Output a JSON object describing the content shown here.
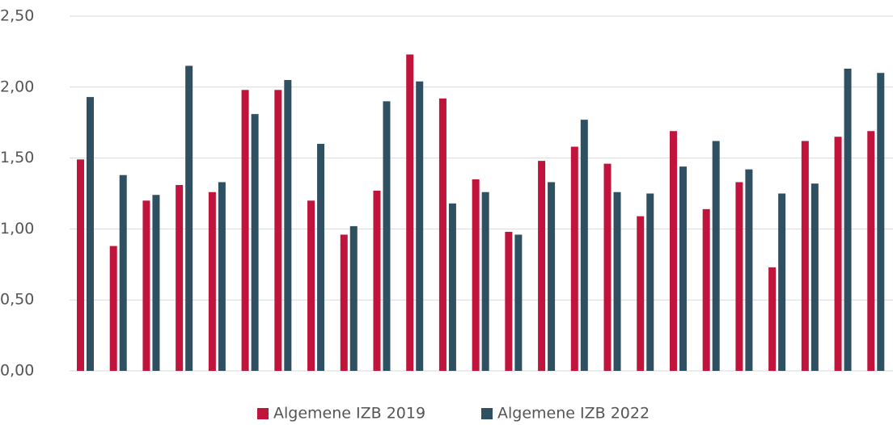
{
  "chart_data": {
    "type": "bar",
    "categories": [
      null,
      null,
      null,
      null,
      null,
      null,
      null,
      null,
      null,
      null,
      null,
      null,
      null,
      null,
      null,
      null,
      null,
      null,
      null,
      null,
      null,
      null,
      null,
      null,
      null
    ],
    "series": [
      {
        "name": "Algemene IZB 2019",
        "color": "#c0143c",
        "values": [
          1.49,
          0.88,
          1.2,
          1.31,
          1.26,
          1.98,
          1.98,
          1.2,
          0.96,
          1.27,
          2.23,
          1.92,
          1.35,
          0.98,
          1.48,
          1.58,
          1.46,
          1.09,
          1.69,
          1.14,
          1.33,
          0.73,
          1.62,
          1.65,
          1.69
        ]
      },
      {
        "name": "Algemene IZB 2022",
        "color": "#2e5060",
        "values": [
          1.93,
          1.38,
          1.24,
          2.15,
          1.33,
          1.81,
          2.05,
          1.6,
          1.02,
          1.9,
          2.04,
          1.18,
          1.26,
          0.96,
          1.33,
          1.77,
          1.26,
          1.25,
          1.44,
          1.62,
          1.42,
          1.25,
          1.32,
          2.13,
          2.1
        ]
      }
    ],
    "ylim": [
      0,
      2.5
    ],
    "yticks": [
      {
        "value": 0,
        "label": "0,00"
      },
      {
        "value": 0.5,
        "label": "0,50"
      },
      {
        "value": 1,
        "label": "1,00"
      },
      {
        "value": 1.5,
        "label": "1,50"
      },
      {
        "value": 2,
        "label": "2,00"
      },
      {
        "value": 2.5,
        "label": "2,50"
      }
    ],
    "grid": true,
    "legend": "bottom"
  }
}
